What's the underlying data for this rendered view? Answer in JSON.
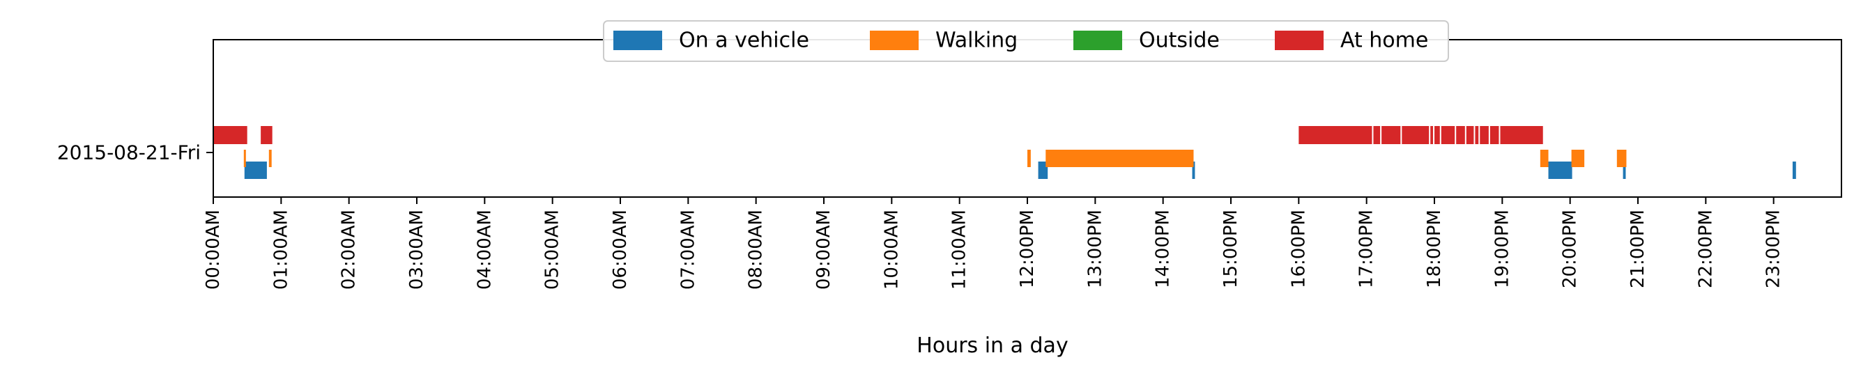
{
  "chart_data": {
    "type": "timeline",
    "title": "",
    "xlabel": "Hours in a day",
    "ylabel": "",
    "xlim": [
      0,
      24
    ],
    "grid": false,
    "legend_position": "top-center",
    "y_categories": [
      "2015-08-21-Fri"
    ],
    "x_ticks": [
      {
        "value": 0,
        "label": "00:00AM"
      },
      {
        "value": 1,
        "label": "01:00AM"
      },
      {
        "value": 2,
        "label": "02:00AM"
      },
      {
        "value": 3,
        "label": "03:00AM"
      },
      {
        "value": 4,
        "label": "04:00AM"
      },
      {
        "value": 5,
        "label": "05:00AM"
      },
      {
        "value": 6,
        "label": "06:00AM"
      },
      {
        "value": 7,
        "label": "07:00AM"
      },
      {
        "value": 8,
        "label": "08:00AM"
      },
      {
        "value": 9,
        "label": "09:00AM"
      },
      {
        "value": 10,
        "label": "10:00AM"
      },
      {
        "value": 11,
        "label": "11:00AM"
      },
      {
        "value": 12,
        "label": "12:00PM"
      },
      {
        "value": 13,
        "label": "13:00PM"
      },
      {
        "value": 14,
        "label": "14:00PM"
      },
      {
        "value": 15,
        "label": "15:00PM"
      },
      {
        "value": 16,
        "label": "16:00PM"
      },
      {
        "value": 17,
        "label": "17:00PM"
      },
      {
        "value": 18,
        "label": "18:00PM"
      },
      {
        "value": 19,
        "label": "19:00PM"
      },
      {
        "value": 20,
        "label": "20:00PM"
      },
      {
        "value": 21,
        "label": "21:00PM"
      },
      {
        "value": 22,
        "label": "22:00PM"
      },
      {
        "value": 23,
        "label": "23:00PM"
      }
    ],
    "series": [
      {
        "name": "On a vehicle",
        "color": "#1f77b4",
        "intervals": [
          [
            0.46,
            0.79
          ],
          [
            12.16,
            12.3
          ],
          [
            14.43,
            14.47
          ],
          [
            19.68,
            20.03
          ],
          [
            20.78,
            20.82
          ],
          [
            23.28,
            23.33
          ]
        ]
      },
      {
        "name": "Walking",
        "color": "#ff7f0e",
        "intervals": [
          [
            0.45,
            0.48
          ],
          [
            0.82,
            0.86
          ],
          [
            12.0,
            12.05
          ],
          [
            12.27,
            14.45
          ],
          [
            19.56,
            19.68
          ],
          [
            20.02,
            20.21
          ],
          [
            20.69,
            20.83
          ]
        ]
      },
      {
        "name": "Outside",
        "color": "#2ca02c",
        "intervals": []
      },
      {
        "name": "At home",
        "color": "#d62728",
        "intervals": [
          [
            0.0,
            0.5
          ],
          [
            0.7,
            0.87
          ],
          [
            16.0,
            19.6
          ]
        ]
      }
    ]
  }
}
